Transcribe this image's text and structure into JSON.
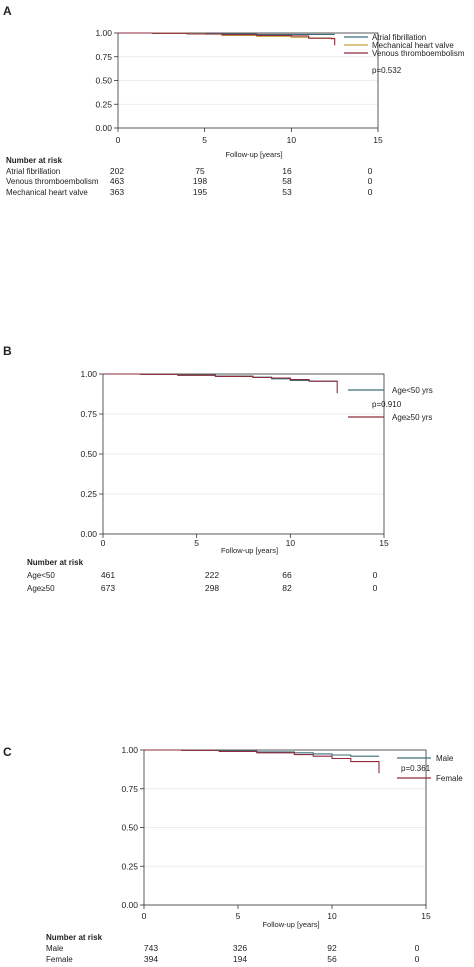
{
  "chart_data": [
    {
      "panel": "A",
      "type": "line",
      "xlabel": "Follow-up [years]",
      "xlim": [
        0,
        15
      ],
      "ylim": [
        0,
        1
      ],
      "xticks": [
        0,
        5,
        10,
        15
      ],
      "yticks": [
        "0.00",
        "0.25",
        "0.50",
        "0.75",
        "1.00"
      ],
      "grid": true,
      "legend_position": "top-right",
      "p_value": "p=0.532",
      "series": [
        {
          "name": "Atrial fibrillation",
          "color": "#3d6e7a",
          "x": [
            0,
            2,
            4,
            6,
            8,
            10,
            12.5
          ],
          "y": [
            1.0,
            0.998,
            0.995,
            0.99,
            0.985,
            0.985,
            0.985
          ]
        },
        {
          "name": "Mechanical heart valve",
          "color": "#c8a040",
          "x": [
            0,
            2,
            4,
            5,
            6,
            8,
            10,
            11,
            12.5
          ],
          "y": [
            1.0,
            0.998,
            0.993,
            0.988,
            0.975,
            0.965,
            0.955,
            0.945,
            0.945
          ]
        },
        {
          "name": "Venous thromboembolism",
          "color": "#8e2c3c",
          "x": [
            0,
            2,
            4,
            6,
            8,
            10,
            11,
            12.3,
            12.5
          ],
          "y": [
            1.0,
            0.997,
            0.99,
            0.982,
            0.975,
            0.97,
            0.945,
            0.94,
            0.87
          ]
        }
      ],
      "risk_table": {
        "title": "Number at risk",
        "rows": [
          {
            "label": "Atrial fibrillation",
            "values": [
              "202",
              "75",
              "16",
              "0"
            ]
          },
          {
            "label": "Venous thromboembolism",
            "values": [
              "463",
              "198",
              "58",
              "0"
            ]
          },
          {
            "label": "Mechanical heart valve",
            "values": [
              "363",
              "195",
              "53",
              "0"
            ]
          }
        ]
      }
    },
    {
      "panel": "B",
      "type": "line",
      "xlabel": "Follow-up [years]",
      "xlim": [
        0,
        15
      ],
      "ylim": [
        0,
        1
      ],
      "xticks": [
        0,
        5,
        10,
        15
      ],
      "yticks": [
        "0.00",
        "0.25",
        "0.50",
        "0.75",
        "1.00"
      ],
      "grid": true,
      "legend_position": "right",
      "p_value": "p=0.910",
      "series": [
        {
          "name": "Age<50 yrs",
          "color": "#3d6e7a",
          "x": [
            0,
            2,
            4,
            6,
            8,
            9,
            10,
            11,
            12.5
          ],
          "y": [
            1.0,
            0.998,
            0.993,
            0.987,
            0.98,
            0.97,
            0.96,
            0.955,
            0.955
          ]
        },
        {
          "name": "Age≥50 yrs",
          "color": "#8e2c3c",
          "x": [
            0,
            2,
            4,
            6,
            8,
            9,
            10,
            11,
            12.3,
            12.5
          ],
          "y": [
            1.0,
            0.998,
            0.992,
            0.985,
            0.978,
            0.975,
            0.965,
            0.955,
            0.955,
            0.88
          ]
        }
      ],
      "risk_table": {
        "title": "Number at risk",
        "rows": [
          {
            "label": "Age<50",
            "values": [
              "461",
              "222",
              "66",
              "0"
            ]
          },
          {
            "label": "Age≥50",
            "values": [
              "673",
              "298",
              "82",
              "0"
            ]
          }
        ]
      }
    },
    {
      "panel": "C",
      "type": "line",
      "xlabel": "Follow-up [years]",
      "xlim": [
        0,
        15
      ],
      "ylim": [
        0,
        1
      ],
      "xticks": [
        0,
        5,
        10,
        15
      ],
      "yticks": [
        "0.00",
        "0.25",
        "0.50",
        "0.75",
        "1.00"
      ],
      "grid": true,
      "legend_position": "top-right",
      "p_value": "p=0.361",
      "series": [
        {
          "name": "Male",
          "color": "#3d6e7a",
          "x": [
            0,
            2,
            4,
            6,
            8,
            9,
            10,
            11,
            12.5
          ],
          "y": [
            1.0,
            0.998,
            0.993,
            0.988,
            0.982,
            0.975,
            0.968,
            0.96,
            0.96
          ]
        },
        {
          "name": "Female",
          "color": "#8e2c3c",
          "x": [
            0,
            2,
            4,
            6,
            8,
            9,
            10,
            11,
            12.3,
            12.5
          ],
          "y": [
            1.0,
            0.998,
            0.99,
            0.982,
            0.97,
            0.96,
            0.945,
            0.925,
            0.925,
            0.85
          ]
        }
      ],
      "risk_table": {
        "title": "Number at risk",
        "rows": [
          {
            "label": "Male",
            "values": [
              "743",
              "326",
              "92",
              "0"
            ]
          },
          {
            "label": "Female",
            "values": [
              "394",
              "194",
              "56",
              "0"
            ]
          }
        ]
      }
    }
  ]
}
